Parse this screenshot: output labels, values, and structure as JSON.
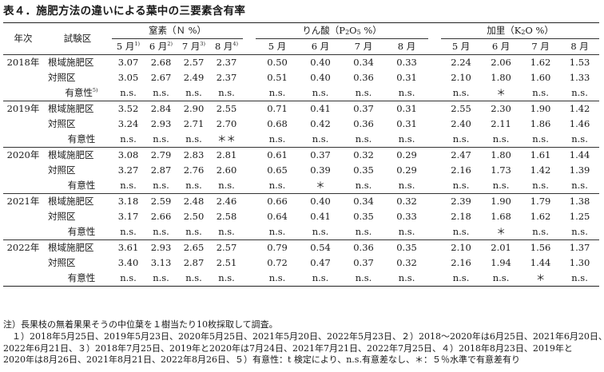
{
  "title": "表４．施肥方法の違いによる葉中の三要素含有率",
  "header": {
    "year": "年次",
    "plot": "試験区",
    "groups": [
      {
        "name": "窒素（Ｎ %）"
      },
      {
        "name_pre": "りん酸（P",
        "sub": "2",
        "name_mid": "O",
        "sub2": "5",
        "name_post": " %）"
      },
      {
        "name_pre": "加里（K",
        "sub": "2",
        "name_post": "O %）"
      }
    ],
    "months_n": [
      {
        "m": "5 月",
        "sup": "1)"
      },
      {
        "m": "6 月",
        "sup": "2)"
      },
      {
        "m": "7 月",
        "sup": "3)"
      },
      {
        "m": "8 月",
        "sup": "4)"
      }
    ],
    "months": [
      "5 月",
      "6 月",
      "7 月",
      "8 月"
    ]
  },
  "years": [
    {
      "year": "2018年",
      "rows": [
        {
          "label": "根域施肥区",
          "n": [
            "3.07",
            "2.68",
            "2.57",
            "2.37"
          ],
          "p": [
            "0.50",
            "0.40",
            "0.34",
            "0.33"
          ],
          "k": [
            "2.24",
            "2.06",
            "1.62",
            "1.53"
          ]
        },
        {
          "label": "対照区",
          "n": [
            "3.05",
            "2.67",
            "2.49",
            "2.37"
          ],
          "p": [
            "0.51",
            "0.40",
            "0.36",
            "0.31"
          ],
          "k": [
            "2.10",
            "1.80",
            "1.60",
            "1.33"
          ]
        }
      ],
      "sig": {
        "label": "有意性",
        "sup": "5)",
        "n": [
          "n.s.",
          "n.s.",
          "n.s.",
          "n.s."
        ],
        "p": [
          "n.s.",
          "n.s.",
          "n.s.",
          "n.s."
        ],
        "k": [
          "n.s.",
          "＊",
          "n.s.",
          "n.s."
        ]
      }
    },
    {
      "year": "2019年",
      "rows": [
        {
          "label": "根域施肥区",
          "n": [
            "3.52",
            "2.84",
            "2.90",
            "2.55"
          ],
          "p": [
            "0.71",
            "0.41",
            "0.37",
            "0.31"
          ],
          "k": [
            "2.55",
            "2.30",
            "1.90",
            "1.42"
          ]
        },
        {
          "label": "対照区",
          "n": [
            "3.24",
            "2.93",
            "2.71",
            "2.70"
          ],
          "p": [
            "0.68",
            "0.42",
            "0.36",
            "0.31"
          ],
          "k": [
            "2.40",
            "2.11",
            "1.86",
            "1.46"
          ]
        }
      ],
      "sig": {
        "label": "有意性",
        "sup": "",
        "n": [
          "n.s.",
          "n.s.",
          "n.s.",
          "＊＊"
        ],
        "p": [
          "n.s.",
          "n.s.",
          "n.s.",
          "n.s."
        ],
        "k": [
          "n.s.",
          "n.s.",
          "n.s.",
          "n.s."
        ]
      }
    },
    {
      "year": "2020年",
      "rows": [
        {
          "label": "根域施肥区",
          "n": [
            "3.08",
            "2.79",
            "2.83",
            "2.81"
          ],
          "p": [
            "0.61",
            "0.37",
            "0.32",
            "0.29"
          ],
          "k": [
            "2.47",
            "1.80",
            "1.61",
            "1.44"
          ]
        },
        {
          "label": "対照区",
          "n": [
            "3.27",
            "2.87",
            "2.76",
            "2.60"
          ],
          "p": [
            "0.65",
            "0.39",
            "0.35",
            "0.29"
          ],
          "k": [
            "2.16",
            "1.73",
            "1.42",
            "1.39"
          ]
        }
      ],
      "sig": {
        "label": "有意性",
        "sup": "",
        "n": [
          "n.s.",
          "n.s.",
          "n.s.",
          "n.s."
        ],
        "p": [
          "n.s.",
          "＊",
          "n.s.",
          "n.s."
        ],
        "k": [
          "n.s.",
          "n.s.",
          "n.s.",
          "n.s."
        ]
      }
    },
    {
      "year": "2021年",
      "rows": [
        {
          "label": "根域施肥区",
          "n": [
            "3.18",
            "2.59",
            "2.48",
            "2.46"
          ],
          "p": [
            "0.66",
            "0.40",
            "0.34",
            "0.32"
          ],
          "k": [
            "2.39",
            "1.90",
            "1.79",
            "1.38"
          ]
        },
        {
          "label": "対照区",
          "n": [
            "3.17",
            "2.66",
            "2.50",
            "2.58"
          ],
          "p": [
            "0.64",
            "0.41",
            "0.35",
            "0.33"
          ],
          "k": [
            "2.18",
            "1.68",
            "1.62",
            "1.25"
          ]
        }
      ],
      "sig": {
        "label": "有意性",
        "sup": "",
        "n": [
          "n.s.",
          "n.s.",
          "n.s.",
          "n.s."
        ],
        "p": [
          "n.s.",
          "n.s.",
          "n.s.",
          "n.s."
        ],
        "k": [
          "n.s.",
          "＊",
          "n.s.",
          "n.s."
        ]
      }
    },
    {
      "year": "2022年",
      "rows": [
        {
          "label": "根域施肥区",
          "n": [
            "3.61",
            "2.93",
            "2.65",
            "2.57"
          ],
          "p": [
            "0.79",
            "0.54",
            "0.36",
            "0.35"
          ],
          "k": [
            "2.10",
            "2.01",
            "1.56",
            "1.37"
          ]
        },
        {
          "label": "対照区",
          "n": [
            "3.40",
            "3.13",
            "2.87",
            "2.51"
          ],
          "p": [
            "0.72",
            "0.47",
            "0.37",
            "0.32"
          ],
          "k": [
            "2.16",
            "1.94",
            "1.44",
            "1.30"
          ]
        }
      ],
      "sig": {
        "label": "有意性",
        "sup": "",
        "n": [
          "n.s.",
          "n.s.",
          "n.s.",
          "n.s."
        ],
        "p": [
          "n.s.",
          "n.s.",
          "n.s.",
          "n.s."
        ],
        "k": [
          "n.s.",
          "n.s.",
          "＊",
          "n.s."
        ]
      }
    }
  ],
  "notes": [
    "注）長果枝の無着果果そうの中位葉を１樹当たり10枚採取して調査。",
    "　１）2018年5月25日、2019年5月23日、2020年5月25日、2021年5月20日、2022年5月23日、２）2018〜2020年は6月25日、2021年6月20日、",
    "2022年6月21日、３）2018年7月25日、2019年と2020年は7月24日、2021年7月21日、2022年7月25日、４）2018年8月23日、2019年と",
    "2020年は8月26日、2021年8月21日、2022年8月26日、５）有意性：t 検定により、n.s.有意差なし、＊：５％水準で有意差有り"
  ]
}
